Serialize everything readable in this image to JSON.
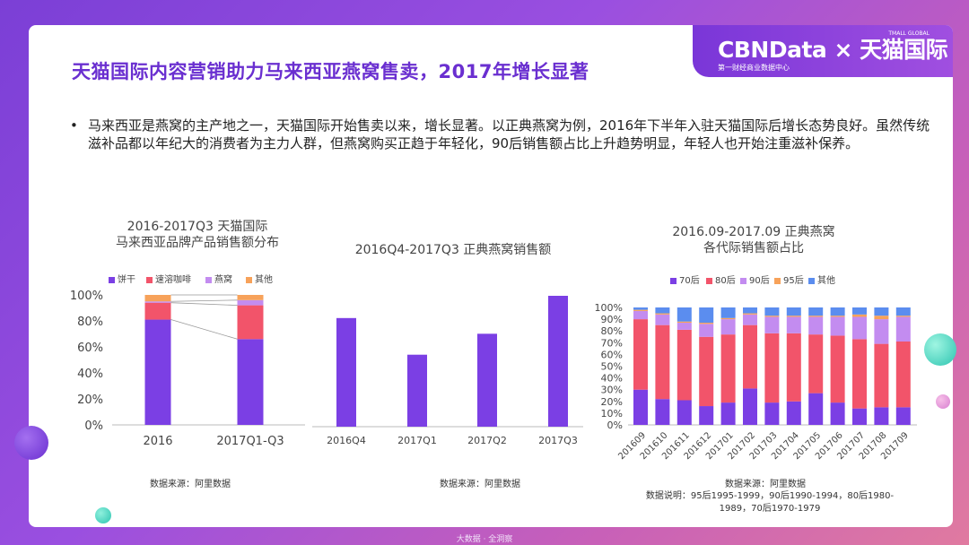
{
  "title": "天猫国际内容营销助力马来西亚燕窝售卖，2017年增长显著",
  "logo": {
    "main": "CBNData × 天猫国际",
    "sub": "第一财经商业数据中心",
    "tiny": "TMALL GLOBAL"
  },
  "bullet": "马来西亚是燕窝的主产地之一，天猫国际开始售卖以来，增长显著。以正典燕窝为例，2016年下半年入驻天猫国际后增长态势良好。虽然传统滋补品都以年纪大的消费者为主力人群，但燕窝购买正趋于年轻化，90后销售额占比上升趋势明显，年轻人也开始注重滋补保养。",
  "bullet_mark": "•",
  "footer": "大数据 · 全洞察",
  "colors": {
    "purple": "#7b3fe4",
    "red": "#f2546a",
    "lavender": "#c38cf0",
    "orange": "#f7a25a",
    "blue": "#5b8def"
  },
  "chart_data": [
    {
      "type": "bar",
      "stacked": true,
      "title": "2016-2017Q3 天猫国际\n马来西亚品牌产品销售额分布",
      "categories": [
        "2016",
        "2017Q1-Q3"
      ],
      "series": [
        {
          "name": "饼干",
          "color": "#7b3fe4",
          "values": [
            81,
            66
          ]
        },
        {
          "name": "速溶咖啡",
          "color": "#f2546a",
          "values": [
            13,
            26
          ]
        },
        {
          "name": "燕窝",
          "color": "#c38cf0",
          "values": [
            1,
            4
          ]
        },
        {
          "name": "其他",
          "color": "#f7a25a",
          "values": [
            5,
            4
          ]
        }
      ],
      "yticks": [
        "0%",
        "20%",
        "40%",
        "60%",
        "80%",
        "100%"
      ],
      "ylim": [
        0,
        100
      ],
      "legend": "top",
      "source": "数据来源：阿里数据"
    },
    {
      "type": "bar",
      "title": "2016Q4-2017Q3 正典燕窝销售额",
      "categories": [
        "2016Q4",
        "2017Q1",
        "2017Q2",
        "2017Q3"
      ],
      "values": [
        83,
        55,
        71,
        100
      ],
      "ylim": [
        0,
        100
      ],
      "source": "数据来源：阿里数据"
    },
    {
      "type": "bar",
      "stacked": true,
      "title": "2016.09-2017.09 正典燕窝\n各代际销售额占比",
      "categories": [
        "201609",
        "201610",
        "201611",
        "201612",
        "201701",
        "201702",
        "201703",
        "201704",
        "201705",
        "201706",
        "201707",
        "201708",
        "201709"
      ],
      "series": [
        {
          "name": "70后",
          "color": "#7b3fe4",
          "values": [
            30,
            22,
            21,
            16,
            19,
            31,
            19,
            20,
            27,
            19,
            14,
            15,
            15
          ]
        },
        {
          "name": "80后",
          "color": "#f2546a",
          "values": [
            60,
            63,
            60,
            59,
            58,
            54,
            59,
            58,
            50,
            57,
            59,
            54,
            56
          ]
        },
        {
          "name": "90后",
          "color": "#c38cf0",
          "values": [
            7,
            9,
            6,
            11,
            13,
            9,
            14,
            14,
            15,
            16,
            19,
            21,
            21
          ]
        },
        {
          "name": "95后",
          "color": "#f7a25a",
          "values": [
            1,
            1,
            1,
            1,
            1,
            1,
            1,
            1,
            1,
            1,
            2,
            3,
            1
          ]
        },
        {
          "name": "其他",
          "color": "#5b8def",
          "values": [
            2,
            5,
            12,
            13,
            9,
            5,
            7,
            7,
            7,
            7,
            6,
            7,
            7
          ]
        }
      ],
      "yticks": [
        "0%",
        "10%",
        "20%",
        "30%",
        "40%",
        "50%",
        "60%",
        "70%",
        "80%",
        "90%",
        "100%"
      ],
      "ylim": [
        0,
        100
      ],
      "legend": "top",
      "source": "数据来源：阿里数据",
      "note": "数据说明：95后1995-1999，90后1990-1994，80后1980-1989，70后1970-1979"
    }
  ]
}
